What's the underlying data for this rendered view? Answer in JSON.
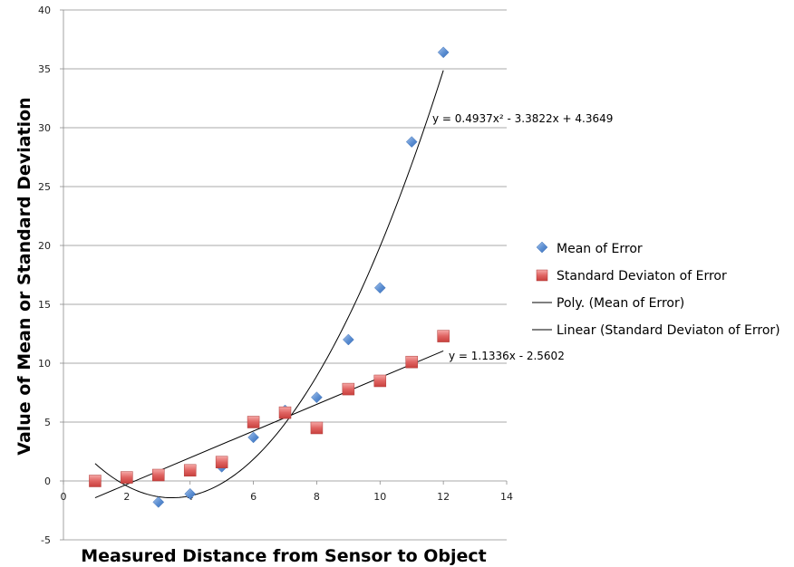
{
  "chart_data": {
    "type": "scatter",
    "xlabel": "Measured Distance from Sensor to Object",
    "ylabel": "Value of Mean or Standard Deviation",
    "xlim": [
      0,
      14
    ],
    "ylim": [
      -5,
      40
    ],
    "x_ticks": [
      "0",
      "2",
      "4",
      "6",
      "8",
      "10",
      "12",
      "14"
    ],
    "y_ticks": [
      "-5",
      "0",
      "5",
      "10",
      "15",
      "20",
      "25",
      "30",
      "35",
      "40"
    ],
    "grid": "horizontal",
    "legend_position": "right",
    "series": [
      {
        "name": "Mean of Error",
        "marker": "diamond",
        "color": "#4f81bd",
        "points": [
          {
            "x": 2,
            "y": 0.3
          },
          {
            "x": 3,
            "y": -1.8
          },
          {
            "x": 4,
            "y": -1.1
          },
          {
            "x": 5,
            "y": 1.2
          },
          {
            "x": 6,
            "y": 3.7
          },
          {
            "x": 7,
            "y": 6.0
          },
          {
            "x": 8,
            "y": 7.1
          },
          {
            "x": 9,
            "y": 12.0
          },
          {
            "x": 10,
            "y": 16.4
          },
          {
            "x": 11,
            "y": 28.8
          },
          {
            "x": 12,
            "y": 36.4
          }
        ]
      },
      {
        "name": "Standard Deviaton of Error",
        "marker": "square",
        "color": "#c0504d",
        "points": [
          {
            "x": 1,
            "y": 0.0
          },
          {
            "x": 2,
            "y": 0.3
          },
          {
            "x": 3,
            "y": 0.5
          },
          {
            "x": 4,
            "y": 0.9
          },
          {
            "x": 5,
            "y": 1.6
          },
          {
            "x": 6,
            "y": 5.0
          },
          {
            "x": 7,
            "y": 5.8
          },
          {
            "x": 8,
            "y": 4.5
          },
          {
            "x": 9,
            "y": 7.8
          },
          {
            "x": 10,
            "y": 8.5
          },
          {
            "x": 11,
            "y": 10.1
          },
          {
            "x": 12,
            "y": 12.3
          }
        ]
      }
    ],
    "trendlines": [
      {
        "name": "Poly. (Mean of Error)",
        "kind": "polynomial",
        "coefficients": [
          0.4937,
          -3.3822,
          4.3649
        ],
        "x_range": [
          1,
          12
        ],
        "equation": "y = 0.4937x² - 3.3822x + 4.3649"
      },
      {
        "name": "Linear (Standard Deviaton of Error)",
        "kind": "linear",
        "coefficients": [
          1.1336,
          -2.5602
        ],
        "x_range": [
          1,
          12
        ],
        "equation": "y = 1.1336x - 2.5602"
      }
    ]
  }
}
